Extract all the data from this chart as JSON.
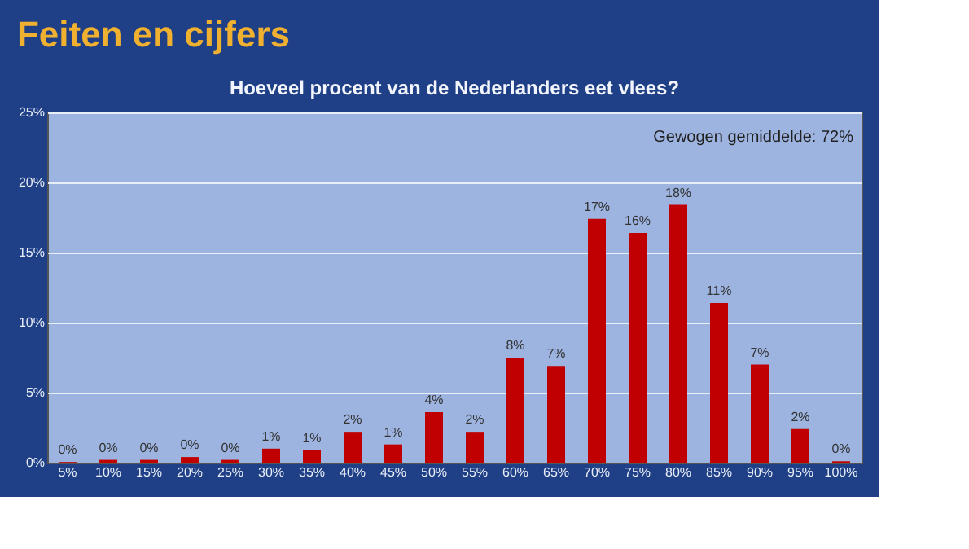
{
  "chart_data": {
    "type": "bar",
    "title": "Feiten en cijfers",
    "subtitle": "Hoeveel procent van de Nederlanders eet vlees?",
    "categories": [
      "5%",
      "10%",
      "15%",
      "20%",
      "25%",
      "30%",
      "35%",
      "40%",
      "45%",
      "50%",
      "55%",
      "60%",
      "65%",
      "70%",
      "75%",
      "80%",
      "85%",
      "90%",
      "95%",
      "100%"
    ],
    "values": [
      0.05,
      0.2,
      0.2,
      0.4,
      0.2,
      1.0,
      0.9,
      2.2,
      1.3,
      3.6,
      2.2,
      7.5,
      6.9,
      17.4,
      16.4,
      18.4,
      11.4,
      7.0,
      2.4,
      0.1
    ],
    "value_labels": [
      "0%",
      "0%",
      "0%",
      "0%",
      "0%",
      "1%",
      "1%",
      "2%",
      "1%",
      "4%",
      "2%",
      "8%",
      "7%",
      "17%",
      "16%",
      "18%",
      "11%",
      "7%",
      "2%",
      "0%"
    ],
    "color": "#c00000",
    "ylim": [
      0,
      25
    ],
    "yticks": [
      {
        "value": 0,
        "label": "0%"
      },
      {
        "value": 5,
        "label": "5%"
      },
      {
        "value": 10,
        "label": "10%"
      },
      {
        "value": 15,
        "label": "15%"
      },
      {
        "value": 20,
        "label": "20%"
      },
      {
        "value": 25,
        "label": "25%"
      }
    ],
    "grid": "y",
    "annotations": [
      "Gewogen gemiddelde: 72%"
    ]
  }
}
